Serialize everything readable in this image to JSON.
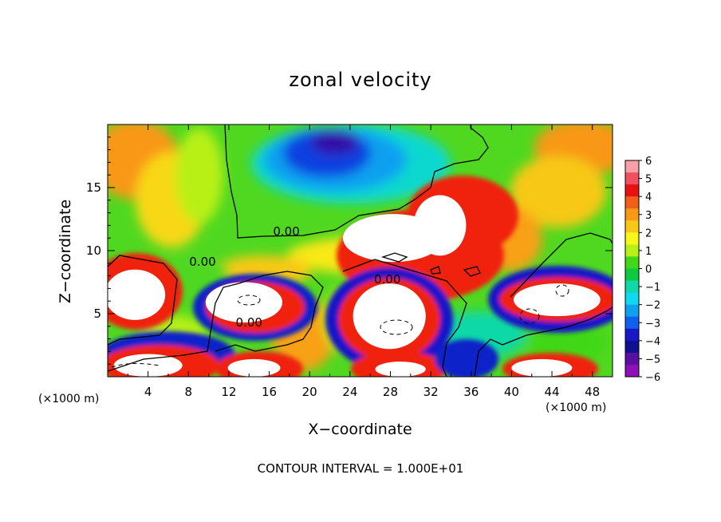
{
  "chart_data": {
    "type": "heatmap",
    "title": "zonal velocity",
    "xlabel": "X−coordinate",
    "ylabel": "Z−coordinate",
    "x_unit": "(×1000 m)",
    "y_unit": "",
    "xlim": [
      0,
      50
    ],
    "ylim": [
      0,
      20
    ],
    "x_ticks": [
      4,
      8,
      12,
      16,
      20,
      24,
      28,
      32,
      36,
      40,
      44,
      48
    ],
    "y_ticks": [
      5,
      10,
      15
    ],
    "colorbar": {
      "ticks": [
        "6",
        "5",
        "4",
        "3",
        "2",
        "1",
        "0",
        "−1",
        "−2",
        "−3",
        "−4",
        "−5",
        "−6"
      ],
      "range": [
        -6,
        6
      ],
      "colors": [
        "#f8a0a8",
        "#f05060",
        "#e81010",
        "#f06018",
        "#f89818",
        "#f8c818",
        "#f8f818",
        "#b8f018",
        "#40d818",
        "#10c840",
        "#10d8a8",
        "#10d8f0",
        "#10a0f0",
        "#1060f0",
        "#1818c8",
        "#101090",
        "#5810a0",
        "#9010b8"
      ]
    },
    "contour_labels": [
      {
        "text": "0.00",
        "x": 14.0,
        "y": 4.0
      },
      {
        "text": "0.00",
        "x": 17.7,
        "y": 11.2
      },
      {
        "text": "0.00",
        "x": 27.7,
        "y": 7.4
      },
      {
        "text": "0.00",
        "x": 9.4,
        "y": 8.8
      }
    ],
    "cells": [
      {
        "x": 5,
        "y": 2,
        "v": 4
      }
    ],
    "white_regions": [
      {
        "cx": 2.7,
        "cy": 6.5,
        "rx": 3.0,
        "ry": 2.0
      },
      {
        "cx": 13.5,
        "cy": 5.9,
        "rx": 3.8,
        "ry": 1.6
      },
      {
        "cx": 28.3,
        "cy": 11.0,
        "rx": 5.0,
        "ry": 1.9
      },
      {
        "cx": 32.9,
        "cy": 12.0,
        "rx": 2.6,
        "ry": 2.4
      },
      {
        "cx": 27.9,
        "cy": 4.8,
        "rx": 3.6,
        "ry": 2.6
      },
      {
        "cx": 44.5,
        "cy": 6.1,
        "rx": 4.3,
        "ry": 1.3
      },
      {
        "cx": 4.0,
        "cy": 0.9,
        "rx": 3.4,
        "ry": 0.9
      },
      {
        "cx": 14.5,
        "cy": 0.7,
        "rx": 2.6,
        "ry": 0.7
      },
      {
        "cx": 29.0,
        "cy": 0.6,
        "rx": 2.5,
        "ry": 0.6
      },
      {
        "cx": 43.0,
        "cy": 0.7,
        "rx": 3.0,
        "ry": 0.7
      }
    ]
  },
  "footer": {
    "contour_interval": "CONTOUR INTERVAL =  1.000E+01"
  }
}
